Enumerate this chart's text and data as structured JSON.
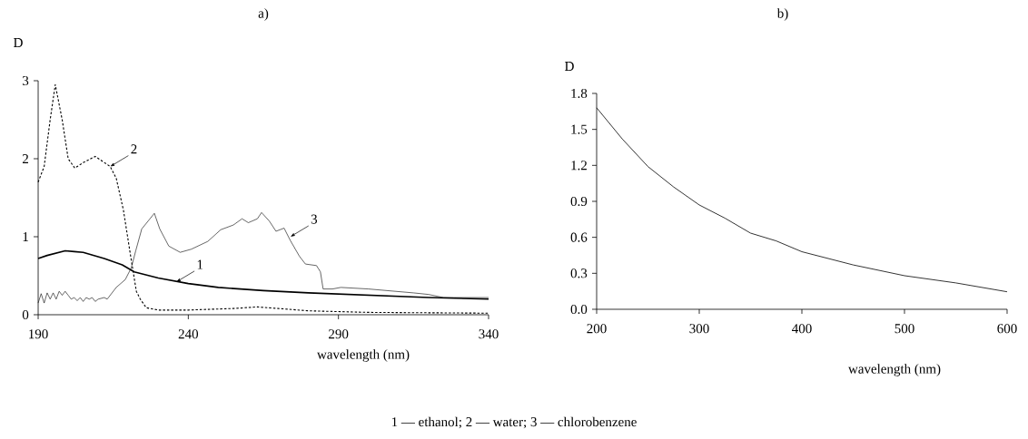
{
  "chart_data": [
    {
      "type": "line",
      "title": "a)",
      "xlabel": "wavelength (nm)",
      "ylabel": "D",
      "xlim": [
        190,
        340
      ],
      "ylim": [
        0,
        3
      ],
      "xticks": [
        190,
        240,
        290,
        340
      ],
      "yticks": [
        0,
        1,
        2,
        3
      ],
      "annotations": [
        {
          "text": "1",
          "x": 236,
          "y": 0.42
        },
        {
          "text": "2",
          "x": 214,
          "y": 1.9
        },
        {
          "text": "3",
          "x": 274,
          "y": 1.0
        },
        "1 — ethanol; 2 — water; 3 — chlorobenzene"
      ],
      "series": [
        {
          "color": "#000000",
          "line_style": "solid",
          "x": [
            190,
            193,
            196,
            199,
            202,
            205,
            212,
            218,
            222,
            230,
            240,
            250,
            265,
            280,
            300,
            320,
            340
          ],
          "values": [
            0.72,
            0.76,
            0.79,
            0.82,
            0.81,
            0.8,
            0.72,
            0.64,
            0.55,
            0.47,
            0.4,
            0.35,
            0.31,
            0.28,
            0.25,
            0.22,
            0.2
          ]
        },
        {
          "color": "#000000",
          "line_style": "dashed",
          "x": [
            190,
            192,
            194,
            195.7,
            198,
            200,
            202.2,
            205,
            209,
            214,
            216,
            218.4,
            220.6,
            222.7,
            224,
            226,
            230,
            240,
            255,
            263,
            270,
            280,
            300,
            340
          ],
          "values": [
            1.7,
            1.9,
            2.5,
            2.95,
            2.5,
            2.0,
            1.88,
            1.95,
            2.03,
            1.9,
            1.75,
            1.34,
            0.8,
            0.3,
            0.2,
            0.09,
            0.06,
            0.06,
            0.08,
            0.1,
            0.08,
            0.05,
            0.03,
            0.02
          ]
        },
        {
          "color": "#000000",
          "line_style": "solid",
          "x": [
            190,
            191,
            192,
            193,
            194,
            195,
            196,
            197,
            198,
            199,
            200,
            201,
            202,
            203,
            204,
            205,
            206,
            207,
            208,
            209,
            210,
            212,
            213,
            216,
            219,
            221,
            222.5,
            224.5,
            228.7,
            230.5,
            233.5,
            237.3,
            241,
            246.5,
            250.8,
            255,
            257.9,
            260,
            263,
            264.4,
            267,
            269.2,
            271.9,
            274,
            277,
            279,
            282.7,
            284,
            284.9,
            288,
            290.8,
            300,
            315,
            320,
            325,
            340
          ],
          "values": [
            0.15,
            0.27,
            0.15,
            0.28,
            0.2,
            0.28,
            0.2,
            0.3,
            0.25,
            0.3,
            0.25,
            0.2,
            0.22,
            0.18,
            0.22,
            0.17,
            0.22,
            0.2,
            0.22,
            0.17,
            0.2,
            0.22,
            0.2,
            0.35,
            0.45,
            0.6,
            0.82,
            1.1,
            1.3,
            1.1,
            0.88,
            0.8,
            0.84,
            0.94,
            1.09,
            1.15,
            1.23,
            1.18,
            1.23,
            1.31,
            1.2,
            1.07,
            1.11,
            0.95,
            0.75,
            0.65,
            0.63,
            0.55,
            0.33,
            0.33,
            0.35,
            0.33,
            0.28,
            0.26,
            0.22,
            0.22
          ]
        }
      ]
    },
    {
      "type": "line",
      "title": "b)",
      "xlabel": "wavelength (nm)",
      "ylabel": "D",
      "xlim": [
        200,
        600
      ],
      "ylim": [
        0,
        1.8
      ],
      "xticks": [
        200,
        300,
        400,
        500,
        600
      ],
      "yticks": [
        {
          "value": 0,
          "label": "0.0"
        },
        0.3,
        0.6,
        0.9,
        1.2,
        1.5,
        1.8
      ],
      "series": [
        {
          "color": "#000000",
          "line_style": "solid",
          "x": [
            200,
            225,
            250,
            275,
            300,
            325,
            350,
            375,
            400,
            450,
            500,
            550,
            600
          ],
          "values": [
            1.68,
            1.42,
            1.19,
            1.02,
            0.87,
            0.76,
            0.635,
            0.57,
            0.48,
            0.37,
            0.28,
            0.22,
            0.146
          ]
        }
      ]
    }
  ]
}
